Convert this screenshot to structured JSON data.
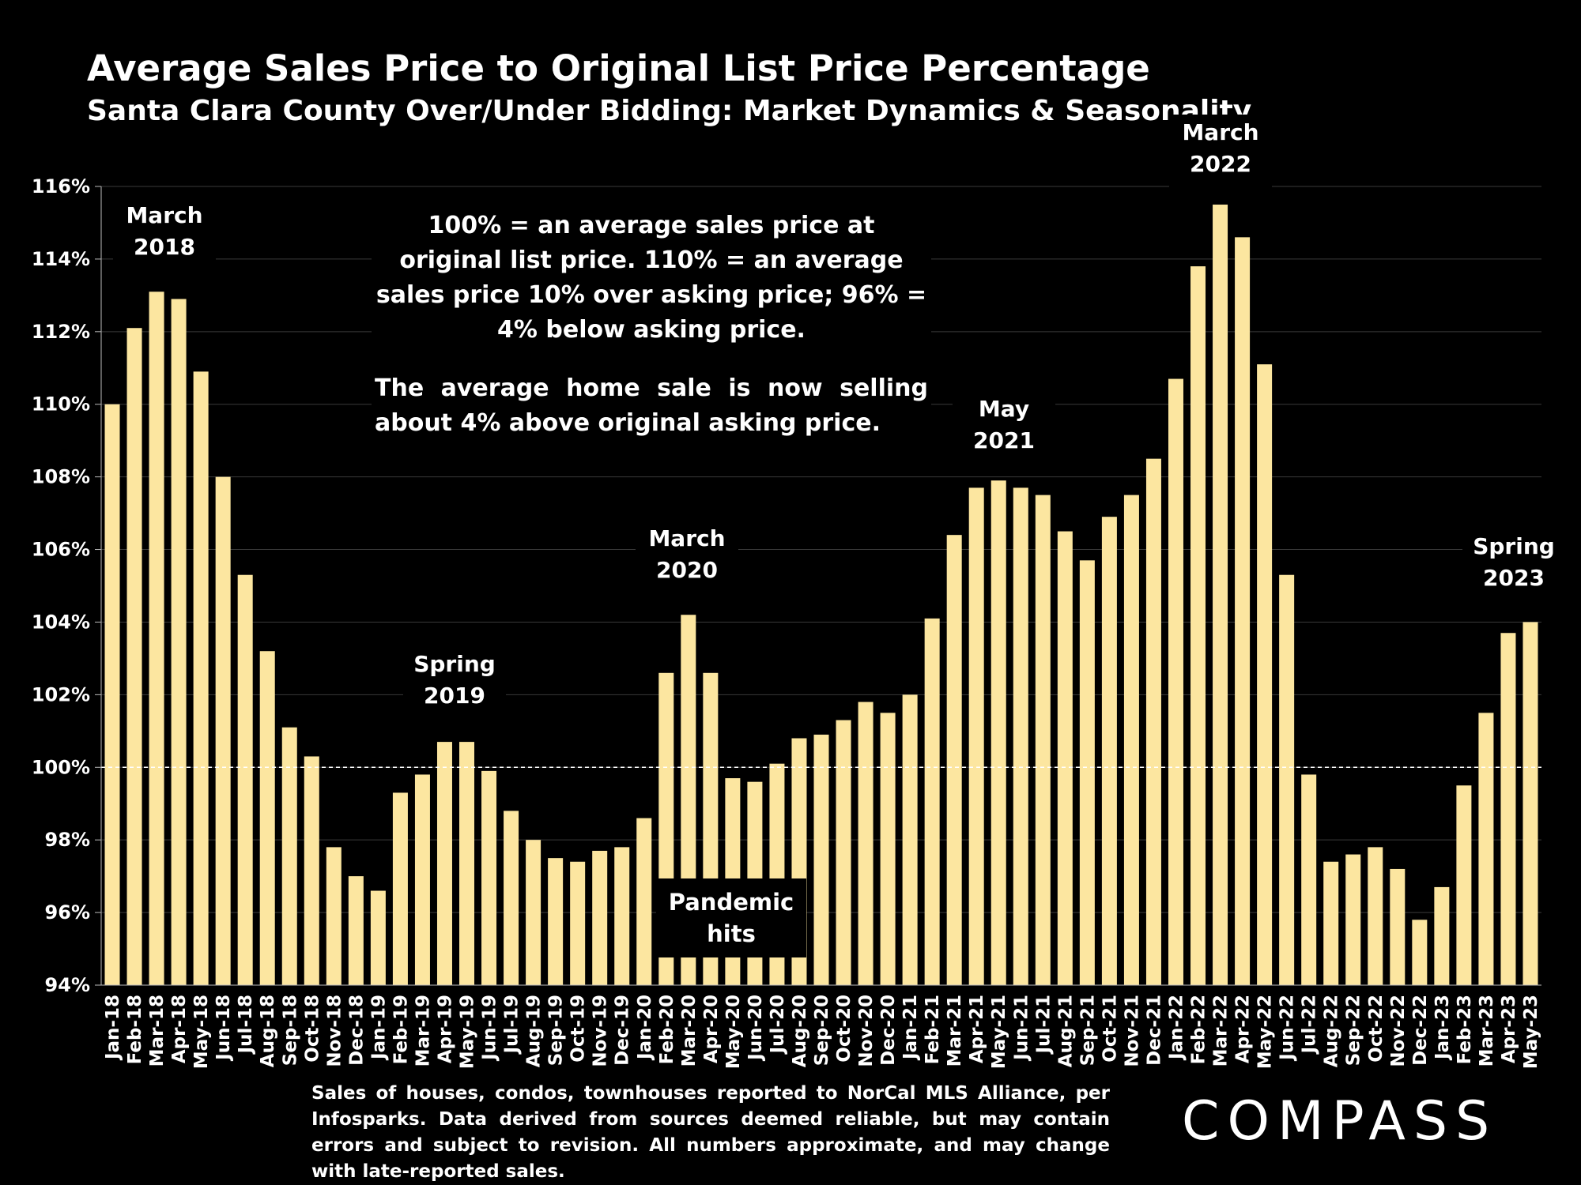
{
  "colors": {
    "background": "#000000",
    "bar": "#FCE6A0",
    "text": "#FFFFFF",
    "grid": "#3a3a3a"
  },
  "chart_data": {
    "type": "bar",
    "title": "Average Sales Price to Original List Price Percentage",
    "subtitle": "Santa Clara County Over/Under Bidding: Market Dynamics & Seasonality",
    "ylim": [
      94,
      116
    ],
    "yticks": [
      "94%",
      "96%",
      "98%",
      "100%",
      "102%",
      "104%",
      "106%",
      "108%",
      "110%",
      "112%",
      "114%",
      "116%"
    ],
    "reference_line": 100,
    "grid": true,
    "categories": [
      "Jan-18",
      "Feb-18",
      "Mar-18",
      "Apr-18",
      "May-18",
      "Jun-18",
      "Jul-18",
      "Aug-18",
      "Sep-18",
      "Oct-18",
      "Nov-18",
      "Dec-18",
      "Jan-19",
      "Feb-19",
      "Mar-19",
      "Apr-19",
      "May-19",
      "Jun-19",
      "Jul-19",
      "Aug-19",
      "Sep-19",
      "Oct-19",
      "Nov-19",
      "Dec-19",
      "Jan-20",
      "Feb-20",
      "Mar-20",
      "Apr-20",
      "May-20",
      "Jun-20",
      "Jul-20",
      "Aug-20",
      "Sep-20",
      "Oct-20",
      "Nov-20",
      "Dec-20",
      "Jan-21",
      "Feb-21",
      "Mar-21",
      "Apr-21",
      "May-21",
      "Jun-21",
      "Jul-21",
      "Aug-21",
      "Sep-21",
      "Oct-21",
      "Nov-21",
      "Dec-21",
      "Jan-22",
      "Feb-22",
      "Mar-22",
      "Apr-22",
      "May-22",
      "Jun-22",
      "Jul-22",
      "Aug-22",
      "Sep-22",
      "Oct-22",
      "Nov-22",
      "Dec-22",
      "Jan-23",
      "Feb-23",
      "Mar-23",
      "Apr-23",
      "May-23"
    ],
    "values": [
      110.0,
      112.1,
      113.1,
      112.9,
      110.9,
      108.0,
      105.3,
      103.2,
      101.1,
      100.3,
      97.8,
      97.0,
      96.6,
      99.3,
      99.8,
      100.7,
      100.7,
      99.9,
      98.8,
      98.0,
      97.5,
      97.4,
      97.7,
      97.8,
      98.6,
      102.6,
      104.2,
      102.6,
      99.7,
      99.6,
      100.1,
      100.8,
      100.9,
      101.3,
      101.8,
      101.5,
      102.0,
      104.1,
      106.4,
      107.7,
      107.9,
      107.7,
      107.5,
      106.5,
      105.7,
      106.9,
      107.5,
      108.5,
      110.7,
      113.8,
      115.5,
      114.6,
      111.1,
      105.3,
      99.8,
      97.4,
      97.6,
      97.8,
      97.2,
      95.8,
      96.7,
      99.5,
      101.5,
      103.7,
      104.0
    ],
    "annotations": [
      {
        "line1": "March",
        "line2": "2018"
      },
      {
        "line1": "Spring",
        "line2": "2019"
      },
      {
        "line1": "March",
        "line2": "2020"
      },
      {
        "line1": "May",
        "line2": "2021"
      },
      {
        "line1": "March",
        "line2": "2022"
      },
      {
        "line1": "Spring",
        "line2": "2023"
      }
    ]
  },
  "note": {
    "line1": "100% = an average sales price at original list price. 110% = an average sales price 10% over asking price; 96% = 4% below asking price.",
    "line2": "The average home sale is now selling about 4% above original asking price."
  },
  "pandemic": {
    "line1": "Pandemic",
    "line2": "hits"
  },
  "footnote": "Sales of houses, condos, townhouses reported to NorCal MLS Alliance, per Infosparks. Data derived from sources deemed reliable, but may contain errors and subject to revision. All numbers approximate, and may change with late-reported sales.",
  "logo": "COMPASS"
}
